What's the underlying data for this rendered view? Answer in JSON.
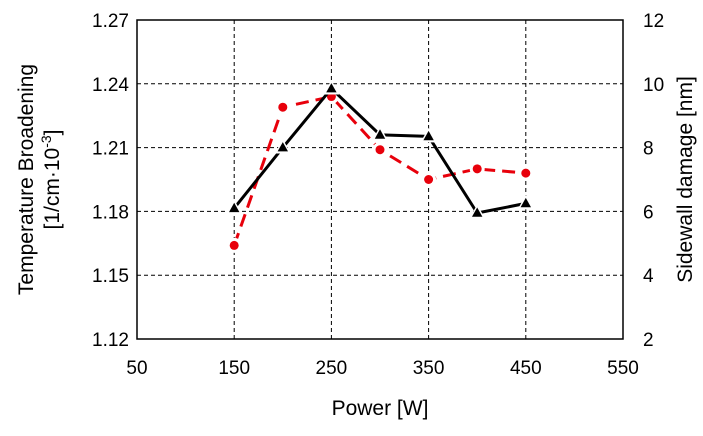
{
  "chart_data": {
    "type": "line",
    "title": "",
    "xlabel": "Power [W]",
    "ylabel_left": {
      "line1": "Temperature Broadening",
      "line2_prefix": "[1/cm·10",
      "line2_sup": "-3",
      "line2_suffix": "]"
    },
    "ylabel_right": "Sidewall damage [nm]",
    "xlim": [
      50,
      550
    ],
    "ylim_left": [
      1.12,
      1.27
    ],
    "ylim_right": [
      2,
      12
    ],
    "x_ticks": [
      50,
      150,
      250,
      350,
      450,
      550
    ],
    "y_left_ticks": [
      "1.12",
      "1.15",
      "1.18",
      "1.21",
      "1.24",
      "1.27"
    ],
    "y_right_ticks": [
      "2",
      "4",
      "6",
      "8",
      "10",
      "12"
    ],
    "grid": true,
    "series": [
      {
        "axis": "left",
        "style": "dashed",
        "marker": "circle",
        "color": "#e8000b",
        "x": [
          150,
          200,
          250,
          300,
          350,
          400,
          450
        ],
        "y": [
          1.164,
          1.229,
          1.234,
          1.209,
          1.195,
          1.2,
          1.198
        ]
      },
      {
        "axis": "right",
        "style": "solid",
        "marker": "triangle",
        "color": "#000000",
        "x": [
          150,
          200,
          250,
          300,
          350,
          400,
          450
        ],
        "y": [
          6.1,
          8.0,
          9.85,
          8.4,
          8.35,
          5.95,
          6.25
        ]
      }
    ]
  }
}
